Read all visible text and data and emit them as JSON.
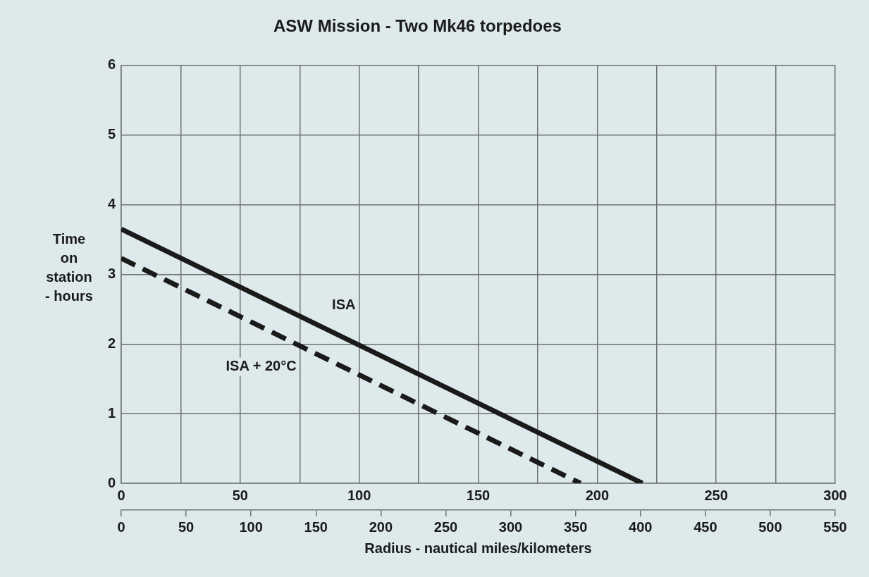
{
  "chart_data": {
    "type": "line",
    "title": "ASW Mission - Two Mk46 torpedoes",
    "xlabel": "Radius - nautical miles/kilometers",
    "ylabel": "Time\non\nstation\n- hours",
    "series": [
      {
        "name": "ISA",
        "color": "#1a1a1a",
        "x": [
          0,
          219
        ],
        "values": [
          3.65,
          0
        ],
        "line_style": "solid"
      },
      {
        "name": "ISA + 20°C",
        "color": "#1a1a1a",
        "x": [
          0,
          193
        ],
        "values": [
          3.23,
          0
        ],
        "line_style": "dashed"
      }
    ],
    "xlim": [
      0,
      300
    ],
    "xticks": [
      0,
      {
        "value": 25,
        "label": null
      },
      50,
      {
        "value": 75,
        "label": null
      },
      100,
      {
        "value": 125,
        "label": null
      },
      150,
      {
        "value": 175,
        "label": null
      },
      200,
      {
        "value": 225,
        "label": null
      },
      250,
      {
        "value": 275,
        "label": null
      },
      300
    ],
    "x2lim": [
      0,
      550
    ],
    "x2ticks": [
      0,
      50,
      100,
      150,
      200,
      250,
      300,
      350,
      400,
      450,
      500,
      550
    ],
    "ylim": [
      0,
      6
    ],
    "yticks": [
      0,
      1,
      2,
      3,
      4,
      5,
      6
    ],
    "grid": true,
    "legend": false,
    "marker": "none"
  }
}
